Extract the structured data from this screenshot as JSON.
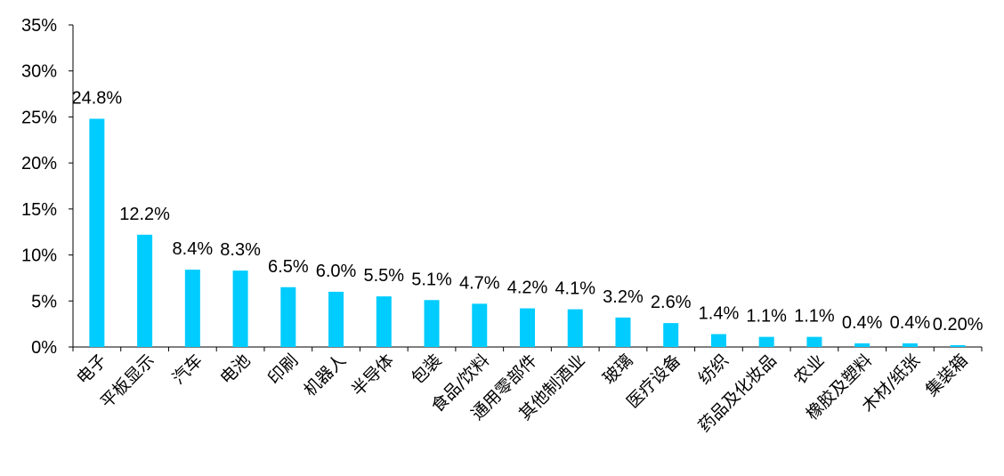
{
  "chart_data": {
    "type": "bar",
    "title": "",
    "xlabel": "",
    "ylabel": "",
    "ylim": [
      0,
      35
    ],
    "yticks": [
      0,
      5,
      10,
      15,
      20,
      25,
      30,
      35
    ],
    "ytick_labels": [
      "0%",
      "5%",
      "10%",
      "15%",
      "20%",
      "25%",
      "30%",
      "35%"
    ],
    "grid": false,
    "legend": "none",
    "bar_color": "#00CCFF",
    "categories": [
      "电子",
      "平板显示",
      "汽车",
      "电池",
      "印刷",
      "机器人",
      "半导体",
      "包装",
      "食品/饮料",
      "通用零部件",
      "其他制酒业",
      "玻璃",
      "医疗设备",
      "纺织",
      "药品及化妆品",
      "农业",
      "橡胶及塑料",
      "木材/纸张",
      "集装箱"
    ],
    "values": [
      24.8,
      12.2,
      8.4,
      8.3,
      6.5,
      6.0,
      5.5,
      5.1,
      4.7,
      4.2,
      4.1,
      3.2,
      2.6,
      1.4,
      1.1,
      1.1,
      0.4,
      0.4,
      0.2
    ],
    "data_labels": [
      "24.8%",
      "12.2%",
      "8.4%",
      "8.3%",
      "6.5%",
      "6.0%",
      "5.5%",
      "5.1%",
      "4.7%",
      "4.2%",
      "4.1%",
      "3.2%",
      "2.6%",
      "1.4%",
      "1.1%",
      "1.1%",
      "0.4%",
      "0.4%",
      "0.20%"
    ]
  }
}
